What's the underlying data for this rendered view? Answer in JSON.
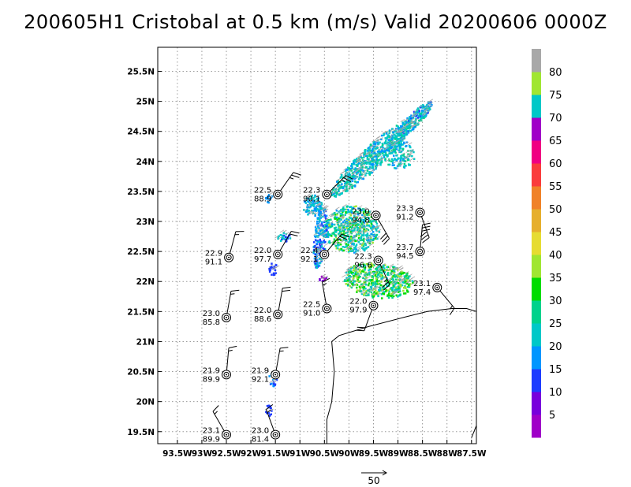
{
  "title": "200605H1 Cristobal at 0.5 km (m/s) Valid 20200606 0000Z",
  "map": {
    "lon_range": [
      -93.9,
      -87.4
    ],
    "lat_range": [
      19.3,
      25.9
    ],
    "lon_ticks": [
      {
        "v": -93.5,
        "label": "93.5W"
      },
      {
        "v": -93,
        "label": "93W"
      },
      {
        "v": -92.5,
        "label": "92.5W"
      },
      {
        "v": -92,
        "label": "92W"
      },
      {
        "v": -91.5,
        "label": "91.5W"
      },
      {
        "v": -91,
        "label": "91W"
      },
      {
        "v": -90.5,
        "label": "90.5W"
      },
      {
        "v": -90,
        "label": "90W"
      },
      {
        "v": -89.5,
        "label": "89.5W"
      },
      {
        "v": -89,
        "label": "89W"
      },
      {
        "v": -88.5,
        "label": "88.5W"
      },
      {
        "v": -88,
        "label": "88W"
      },
      {
        "v": -87.5,
        "label": "87.5W"
      }
    ],
    "lat_ticks": [
      {
        "v": 19.5,
        "label": "19.5N"
      },
      {
        "v": 20,
        "label": "20N"
      },
      {
        "v": 20.5,
        "label": "20.5N"
      },
      {
        "v": 21,
        "label": "21N"
      },
      {
        "v": 21.5,
        "label": "21.5N"
      },
      {
        "v": 22,
        "label": "22N"
      },
      {
        "v": 22.5,
        "label": "22.5N"
      },
      {
        "v": 23,
        "label": "23N"
      },
      {
        "v": 23.5,
        "label": "23.5N"
      },
      {
        "v": 24,
        "label": "24N"
      },
      {
        "v": 24.5,
        "label": "24.5N"
      },
      {
        "v": 25,
        "label": "25N"
      },
      {
        "v": 25.5,
        "label": "25.5N"
      }
    ],
    "stations": [
      {
        "lon": -91.45,
        "lat": 23.45,
        "t": "22.5",
        "b": "88.9",
        "dir": 35,
        "spd": 25
      },
      {
        "lon": -90.45,
        "lat": 23.45,
        "t": "22.3",
        "b": "90.1",
        "dir": 45,
        "spd": 25
      },
      {
        "lon": -89.45,
        "lat": 23.1,
        "t": "23.0",
        "b": "94.8",
        "dir": 150,
        "spd": 30
      },
      {
        "lon": -88.55,
        "lat": 23.15,
        "t": "23.3",
        "b": "91.2",
        "dir": 160,
        "spd": 30
      },
      {
        "lon": -92.45,
        "lat": 22.4,
        "t": "22.9",
        "b": "91.1",
        "dir": 15,
        "spd": 15
      },
      {
        "lon": -91.45,
        "lat": 22.45,
        "t": "22.0",
        "b": "97.7",
        "dir": 30,
        "spd": 20
      },
      {
        "lon": -90.5,
        "lat": 22.45,
        "t": "22.4",
        "b": "92.1",
        "dir": 40,
        "spd": 25
      },
      {
        "lon": -89.4,
        "lat": 22.35,
        "t": "22.3",
        "b": "96.6",
        "dir": 155,
        "spd": 25
      },
      {
        "lon": -88.55,
        "lat": 22.5,
        "t": "23.7",
        "b": "94.5",
        "dir": 5,
        "spd": 30
      },
      {
        "lon": -88.2,
        "lat": 21.9,
        "t": "23.1",
        "b": "97.4",
        "dir": 140,
        "spd": 15
      },
      {
        "lon": -92.5,
        "lat": 21.4,
        "t": "23.0",
        "b": "85.8",
        "dir": 10,
        "spd": 15
      },
      {
        "lon": -91.45,
        "lat": 21.45,
        "t": "22.0",
        "b": "88.6",
        "dir": 10,
        "spd": 20
      },
      {
        "lon": -90.45,
        "lat": 21.55,
        "t": "22.5",
        "b": "91.0",
        "dir": 350,
        "spd": 15
      },
      {
        "lon": -89.5,
        "lat": 21.6,
        "t": "22.0",
        "b": "97.9",
        "dir": 200,
        "spd": 20
      },
      {
        "lon": -92.5,
        "lat": 20.45,
        "t": "21.9",
        "b": "89.9",
        "dir": 5,
        "spd": 15
      },
      {
        "lon": -91.5,
        "lat": 20.45,
        "t": "21.9",
        "b": "92.1",
        "dir": 10,
        "spd": 15
      },
      {
        "lon": -92.5,
        "lat": 19.45,
        "t": "23.1",
        "b": "89.9",
        "dir": 330,
        "spd": 15
      },
      {
        "lon": -91.5,
        "lat": 19.45,
        "t": "23.0",
        "b": "81.4",
        "dir": 340,
        "spd": 15
      }
    ],
    "coastline": [
      [
        -90.45,
        19.3
      ],
      [
        -90.45,
        19.7
      ],
      [
        -90.35,
        20.0
      ],
      [
        -90.3,
        20.5
      ],
      [
        -90.35,
        21.0
      ],
      [
        -90.2,
        21.1
      ],
      [
        -89.6,
        21.25
      ],
      [
        -88.9,
        21.4
      ],
      [
        -88.4,
        21.5
      ],
      [
        -87.9,
        21.55
      ],
      [
        -87.6,
        21.55
      ],
      [
        -87.4,
        21.5
      ]
    ],
    "coastline2": [
      [
        -87.4,
        19.6
      ],
      [
        -87.5,
        19.4
      ]
    ],
    "colors": {
      "red": "#d2d2d2",
      "gray_vector": "#a8a8a8"
    }
  },
  "colorbar": {
    "colors": [
      "#a000c8",
      "#7800dc",
      "#1e3cff",
      "#0096ff",
      "#00c8c8",
      "#00d28c",
      "#00dc00",
      "#a0e632",
      "#e6dc32",
      "#e6af2d",
      "#f08228",
      "#fa3c3c",
      "#f00082",
      "#a000c8",
      "#00c8c8",
      "#a0e632",
      "#a8a8a8"
    ],
    "labels": [
      "5",
      "10",
      "15",
      "20",
      "25",
      "30",
      "35",
      "40",
      "45",
      "50",
      "55",
      "60",
      "65",
      "70",
      "75",
      "80"
    ]
  },
  "scale_vector": {
    "label": "50"
  }
}
